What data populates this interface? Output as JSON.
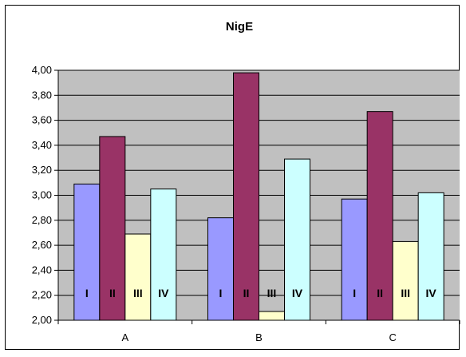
{
  "chart_data": {
    "type": "bar",
    "title": "NigE",
    "categories": [
      "A",
      "B",
      "C"
    ],
    "ylim": [
      2.0,
      4.0
    ],
    "ytick_step": 0.2,
    "grid": true,
    "legend": "none",
    "series": [
      {
        "label": "I",
        "color": "#9999ff",
        "values": [
          3.09,
          2.82,
          2.97
        ]
      },
      {
        "label": "II",
        "color": "#993366",
        "values": [
          3.47,
          3.98,
          3.67
        ]
      },
      {
        "label": "III",
        "color": "#ffffcc",
        "values": [
          2.69,
          2.07,
          2.63
        ]
      },
      {
        "label": "IV",
        "color": "#ccffff",
        "values": [
          3.05,
          3.29,
          3.02
        ]
      }
    ],
    "plot_background": "#c0c0c0"
  }
}
